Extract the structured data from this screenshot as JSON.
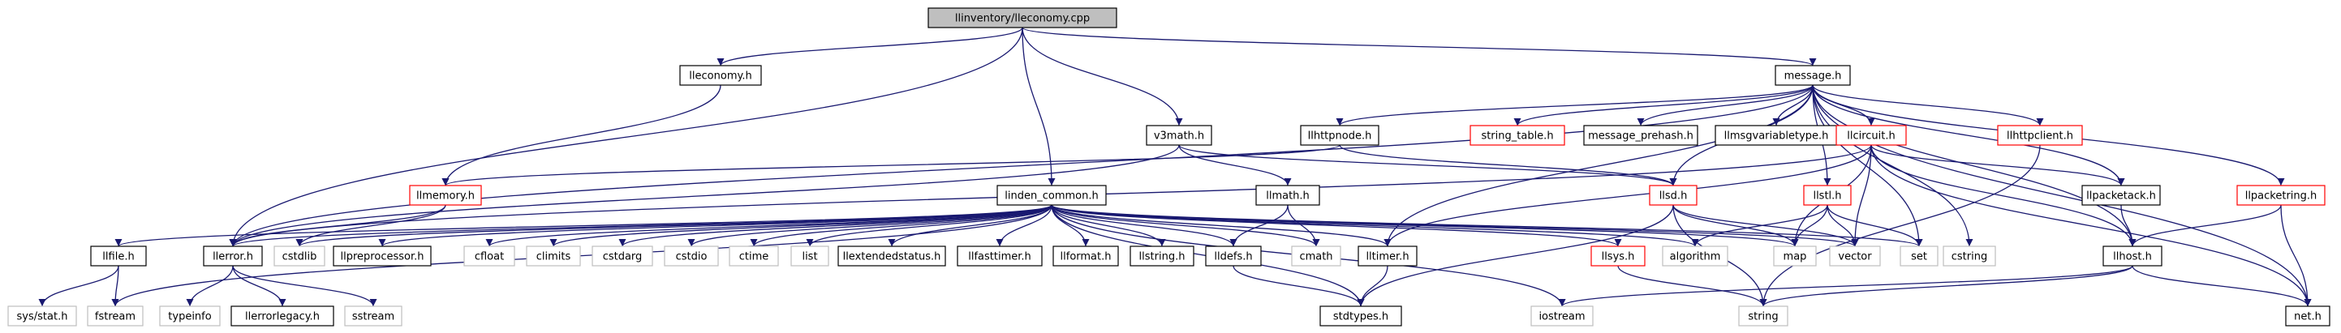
{
  "colors": {
    "edge": "#191970",
    "root_fill": "#bfbfbf",
    "node_border": "#000000",
    "missing_border": "#ff0000",
    "external_border": "#bfbfbf",
    "node_fill": "#ffffff"
  },
  "nodes": [
    {
      "id": "root",
      "label": "llinventory/lleconomy.cpp",
      "kind": "root"
    },
    {
      "id": "lleconomy",
      "label": "lleconomy.h",
      "kind": "normal"
    },
    {
      "id": "message",
      "label": "message.h",
      "kind": "normal"
    },
    {
      "id": "v3math",
      "label": "v3math.h",
      "kind": "normal"
    },
    {
      "id": "llhttpnode",
      "label": "llhttpnode.h",
      "kind": "normal"
    },
    {
      "id": "string_table",
      "label": "string_table.h",
      "kind": "missing"
    },
    {
      "id": "message_prehash",
      "label": "message_prehash.h",
      "kind": "normal"
    },
    {
      "id": "llmsgvariabletype",
      "label": "llmsgvariabletype.h",
      "kind": "normal"
    },
    {
      "id": "llcircuit",
      "label": "llcircuit.h",
      "kind": "missing"
    },
    {
      "id": "llhttpclient",
      "label": "llhttpclient.h",
      "kind": "missing"
    },
    {
      "id": "llmemory",
      "label": "llmemory.h",
      "kind": "missing"
    },
    {
      "id": "llpreprocessor_side",
      "label": "llmath.h",
      "kind": "normal"
    },
    {
      "id": "llpacketack",
      "label": "llpacketack.h",
      "kind": "normal"
    },
    {
      "id": "llpacketring",
      "label": "llpacketring.h",
      "kind": "missing"
    },
    {
      "id": "llsd",
      "label": "llsd.h",
      "kind": "missing"
    },
    {
      "id": "llstl",
      "label": "llstl.h",
      "kind": "missing"
    },
    {
      "id": "linden_common",
      "label": "linden_common.h",
      "kind": "normal"
    },
    {
      "id": "llfile",
      "label": "llfile.h",
      "kind": "normal"
    },
    {
      "id": "llerror",
      "label": "llerror.h",
      "kind": "normal"
    },
    {
      "id": "cstdlib",
      "label": "cstdlib",
      "kind": "external"
    },
    {
      "id": "llpreprocessor",
      "label": "llpreprocessor.h",
      "kind": "normal"
    },
    {
      "id": "cfloat",
      "label": "cfloat",
      "kind": "external"
    },
    {
      "id": "climits",
      "label": "climits",
      "kind": "external"
    },
    {
      "id": "cstdarg",
      "label": "cstdarg",
      "kind": "external"
    },
    {
      "id": "cstdio",
      "label": "cstdio",
      "kind": "external"
    },
    {
      "id": "ctime",
      "label": "ctime",
      "kind": "external"
    },
    {
      "id": "list",
      "label": "list",
      "kind": "external"
    },
    {
      "id": "llextendedstatus",
      "label": "llextendedstatus.h",
      "kind": "normal"
    },
    {
      "id": "llfasttimer",
      "label": "llfasttimer.h",
      "kind": "normal"
    },
    {
      "id": "llformat",
      "label": "llformat.h",
      "kind": "normal"
    },
    {
      "id": "llstring",
      "label": "llstring.h",
      "kind": "normal"
    },
    {
      "id": "lldefs",
      "label": "lldefs.h",
      "kind": "normal"
    },
    {
      "id": "cmath",
      "label": "cmath",
      "kind": "external"
    },
    {
      "id": "lltimer",
      "label": "lltimer.h",
      "kind": "normal"
    },
    {
      "id": "llsys",
      "label": "llsys.h",
      "kind": "missing"
    },
    {
      "id": "algorithm",
      "label": "algorithm",
      "kind": "external"
    },
    {
      "id": "map",
      "label": "map",
      "kind": "external"
    },
    {
      "id": "vector",
      "label": "vector",
      "kind": "external"
    },
    {
      "id": "set",
      "label": "set",
      "kind": "external"
    },
    {
      "id": "cstring",
      "label": "cstring",
      "kind": "external"
    },
    {
      "id": "llhost",
      "label": "llhost.h",
      "kind": "normal"
    },
    {
      "id": "net",
      "label": "net.h",
      "kind": "normal"
    },
    {
      "id": "sysstat",
      "label": "sys/stat.h",
      "kind": "external"
    },
    {
      "id": "fstream",
      "label": "fstream",
      "kind": "external"
    },
    {
      "id": "typeinfo",
      "label": "typeinfo",
      "kind": "external"
    },
    {
      "id": "llerrorlegacy",
      "label": "llerrorlegacy.h",
      "kind": "normal"
    },
    {
      "id": "sstream",
      "label": "sstream",
      "kind": "external"
    },
    {
      "id": "stdtypes",
      "label": "stdtypes.h",
      "kind": "normal"
    },
    {
      "id": "iostream",
      "label": "iostream",
      "kind": "external"
    },
    {
      "id": "string",
      "label": "string",
      "kind": "external"
    }
  ],
  "edges": [
    [
      "root",
      "lleconomy"
    ],
    [
      "root",
      "message"
    ],
    [
      "root",
      "v3math"
    ],
    [
      "root",
      "linden_common"
    ],
    [
      "root",
      "llerror"
    ],
    [
      "lleconomy",
      "llmemory"
    ],
    [
      "message",
      "llhttpnode"
    ],
    [
      "message",
      "string_table"
    ],
    [
      "message",
      "message_prehash"
    ],
    [
      "message",
      "llmsgvariabletype"
    ],
    [
      "message",
      "llcircuit"
    ],
    [
      "message",
      "llhttpclient"
    ],
    [
      "message",
      "llpacketack"
    ],
    [
      "message",
      "llpacketring"
    ],
    [
      "message",
      "llerror"
    ],
    [
      "message",
      "llsd"
    ],
    [
      "message",
      "lltimer"
    ],
    [
      "message",
      "set"
    ],
    [
      "message",
      "cstring"
    ],
    [
      "message",
      "llhost"
    ],
    [
      "message",
      "net"
    ],
    [
      "message",
      "llstl"
    ],
    [
      "v3math",
      "llerror"
    ],
    [
      "v3math",
      "llpreprocessor_side"
    ],
    [
      "v3math",
      "llsd"
    ],
    [
      "llhttpnode",
      "llmemory"
    ],
    [
      "llhttpnode",
      "llsd"
    ],
    [
      "llcircuit",
      "llerror"
    ],
    [
      "llcircuit",
      "map"
    ],
    [
      "llcircuit",
      "vector"
    ],
    [
      "llcircuit",
      "lltimer"
    ],
    [
      "llcircuit",
      "llpacketack"
    ],
    [
      "llcircuit",
      "llhost"
    ],
    [
      "llcircuit",
      "net"
    ],
    [
      "llhttpclient",
      "string"
    ],
    [
      "llmemory",
      "llerror"
    ],
    [
      "llmemory",
      "cstdlib"
    ],
    [
      "llpreprocessor_side",
      "lldefs"
    ],
    [
      "llpreprocessor_side",
      "cmath"
    ],
    [
      "llpacketack",
      "llhost"
    ],
    [
      "llpacketring",
      "llhost"
    ],
    [
      "llpacketring",
      "net"
    ],
    [
      "llsd",
      "map"
    ],
    [
      "llsd",
      "string"
    ],
    [
      "llsd",
      "vector"
    ],
    [
      "llsd",
      "stdtypes"
    ],
    [
      "llstl",
      "map"
    ],
    [
      "llstl",
      "vector"
    ],
    [
      "llstl",
      "set"
    ],
    [
      "llstl",
      "algorithm"
    ],
    [
      "linden_common",
      "llfile"
    ],
    [
      "linden_common",
      "llerror"
    ],
    [
      "linden_common",
      "cstdlib"
    ],
    [
      "linden_common",
      "llpreprocessor"
    ],
    [
      "linden_common",
      "cfloat"
    ],
    [
      "linden_common",
      "climits"
    ],
    [
      "linden_common",
      "cstdarg"
    ],
    [
      "linden_common",
      "cstdio"
    ],
    [
      "linden_common",
      "ctime"
    ],
    [
      "linden_common",
      "list"
    ],
    [
      "linden_common",
      "llextendedstatus"
    ],
    [
      "linden_common",
      "llfasttimer"
    ],
    [
      "linden_common",
      "llformat"
    ],
    [
      "linden_common",
      "llstring"
    ],
    [
      "linden_common",
      "lldefs"
    ],
    [
      "linden_common",
      "cmath"
    ],
    [
      "linden_common",
      "lltimer"
    ],
    [
      "linden_common",
      "llsys"
    ],
    [
      "linden_common",
      "algorithm"
    ],
    [
      "linden_common",
      "map"
    ],
    [
      "linden_common",
      "vector"
    ],
    [
      "linden_common",
      "set"
    ],
    [
      "linden_common",
      "stdtypes"
    ],
    [
      "linden_common",
      "iostream"
    ],
    [
      "linden_common",
      "fstream"
    ],
    [
      "llfile",
      "sysstat"
    ],
    [
      "llfile",
      "fstream"
    ],
    [
      "llerror",
      "typeinfo"
    ],
    [
      "llerror",
      "llerrorlegacy"
    ],
    [
      "llerror",
      "sstream"
    ],
    [
      "lldefs",
      "stdtypes"
    ],
    [
      "lltimer",
      "stdtypes"
    ],
    [
      "llsys",
      "string"
    ],
    [
      "llhost",
      "iostream"
    ],
    [
      "llhost",
      "string"
    ],
    [
      "llhost",
      "net"
    ]
  ]
}
